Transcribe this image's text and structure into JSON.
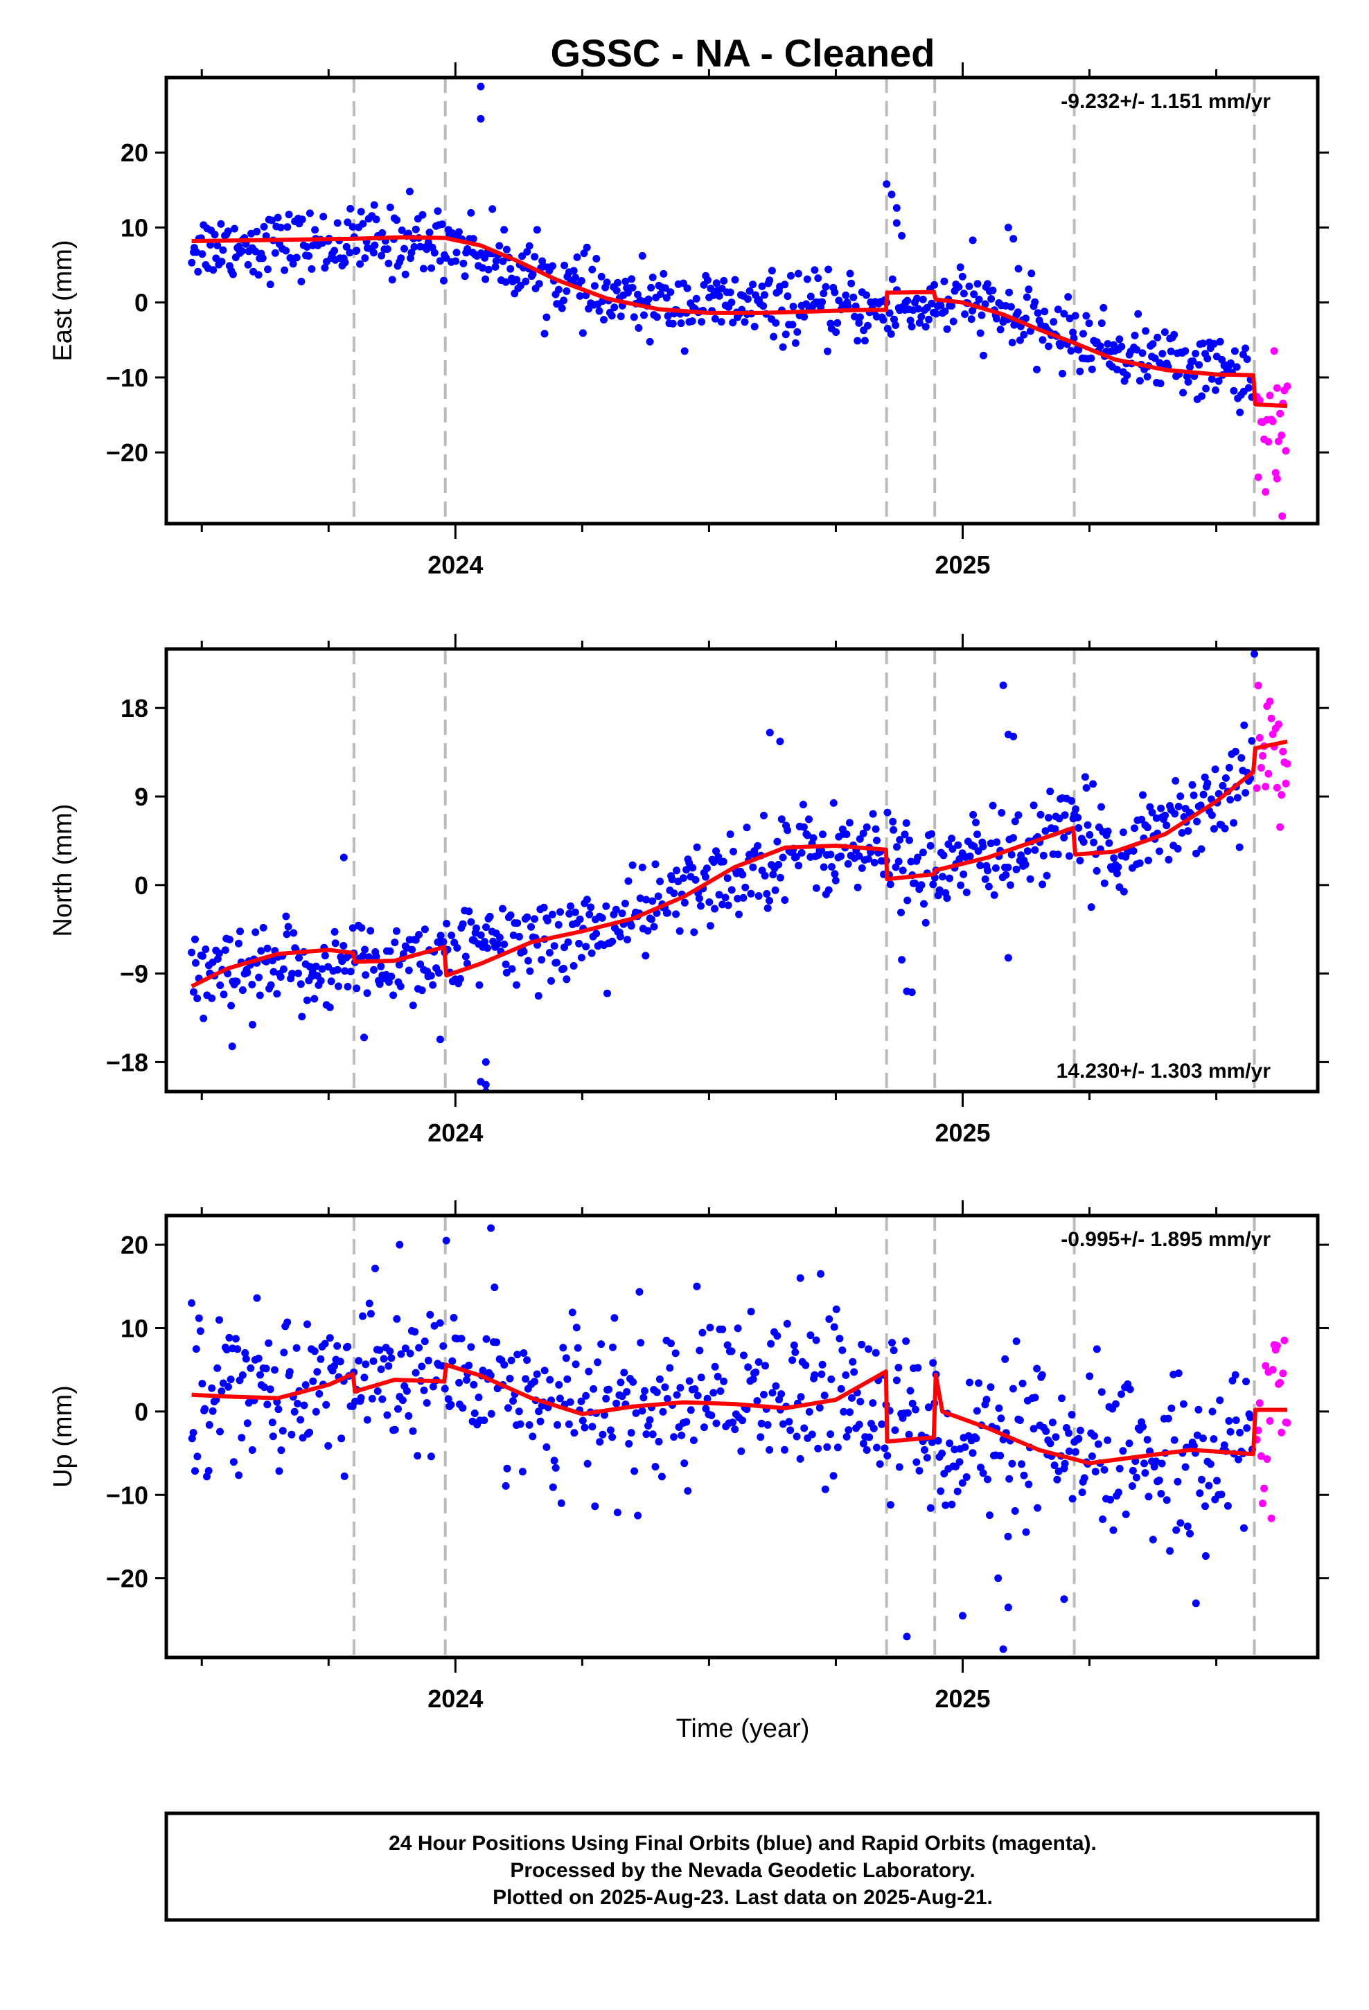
{
  "title": "GSSC  - NA - Cleaned",
  "x_axis_label": "Time (year)",
  "footer_lines": [
    "24 Hour Positions Using Final Orbits (blue) and Rapid Orbits (magenta).",
    "Processed by the Nevada Geodetic Laboratory.",
    "Plotted on 2025-Aug-23. Last data on 2025-Aug-21."
  ],
  "colors": {
    "final_orbits": "#0000ff",
    "rapid_orbits": "#ff00ff",
    "model": "#ff0000",
    "offset_lines": "#bbbbbb"
  },
  "chart_data": [
    {
      "type": "scatter",
      "component": "east",
      "ylabel": "East (mm)",
      "rate_text": "-9.232+/- 1.151 mm/yr",
      "xlim": [
        2023.43,
        2025.7
      ],
      "ylim": [
        -29.5,
        30
      ],
      "x_ticks": [
        2024,
        2025
      ],
      "y_ticks": [
        20,
        10,
        0,
        -10,
        -20
      ],
      "offset_epochs": [
        2023.8,
        2023.98,
        2024.85,
        2024.945,
        2025.22,
        2025.575
      ],
      "model": [
        [
          2023.48,
          8.2
        ],
        [
          2023.6,
          8.3
        ],
        [
          2023.7,
          8.4
        ],
        [
          2023.8,
          8.5
        ],
        [
          2023.9,
          8.7
        ],
        [
          2023.98,
          8.6
        ],
        [
          2024.05,
          7.6
        ],
        [
          2024.12,
          5.6
        ],
        [
          2024.2,
          3.0
        ],
        [
          2024.3,
          0.5
        ],
        [
          2024.4,
          -0.9
        ],
        [
          2024.5,
          -1.4
        ],
        [
          2024.6,
          -1.4
        ],
        [
          2024.7,
          -1.2
        ],
        [
          2024.8,
          -1.0
        ],
        [
          2024.849,
          -1.0
        ],
        [
          2024.851,
          1.3
        ],
        [
          2024.943,
          1.4
        ],
        [
          2024.947,
          0.4
        ],
        [
          2025.0,
          0.0
        ],
        [
          2025.08,
          -1.6
        ],
        [
          2025.15,
          -3.6
        ],
        [
          2025.22,
          -5.4
        ],
        [
          2025.3,
          -7.6
        ],
        [
          2025.4,
          -9.0
        ],
        [
          2025.5,
          -9.6
        ],
        [
          2025.573,
          -9.7
        ],
        [
          2025.577,
          -13.6
        ],
        [
          2025.64,
          -13.8
        ]
      ],
      "final_trend": [
        [
          2023.48,
          7.6
        ],
        [
          2024.0,
          8.0
        ],
        [
          2024.3,
          0.3
        ],
        [
          2024.85,
          -1.2
        ],
        [
          2025.0,
          0.1
        ],
        [
          2025.3,
          -6.5
        ],
        [
          2025.57,
          -9.6
        ]
      ],
      "final_scatter": 2.2,
      "final_count": 700,
      "rapid_trend": [
        [
          2025.58,
          -16.0
        ],
        [
          2025.64,
          -16.0
        ]
      ],
      "rapid_scatter": 4.0,
      "rapid_count": 22,
      "outliers": [
        [
          2024.05,
          28.8
        ],
        [
          2024.05,
          24.5
        ],
        [
          2024.85,
          15.8
        ],
        [
          2024.86,
          14.4
        ],
        [
          2024.87,
          12.6
        ],
        [
          2024.87,
          10.6
        ],
        [
          2024.88,
          8.9
        ],
        [
          2025.09,
          10.0
        ],
        [
          2025.1,
          8.5
        ],
        [
          2025.11,
          4.5
        ],
        [
          2025.02,
          8.3
        ],
        [
          2023.84,
          13.0
        ],
        [
          2023.91,
          14.8
        ],
        [
          2025.63,
          -28.5
        ],
        [
          2025.62,
          -23.5
        ]
      ]
    },
    {
      "type": "scatter",
      "component": "north",
      "ylabel": "North (mm)",
      "rate_text": "14.230+/- 1.303 mm/yr",
      "xlim": [
        2023.43,
        2025.7
      ],
      "ylim": [
        -21,
        24
      ],
      "x_ticks": [
        2024,
        2025
      ],
      "y_ticks": [
        18,
        9,
        0,
        -9,
        -18
      ],
      "offset_epochs": [
        2023.8,
        2023.98,
        2024.85,
        2024.945,
        2025.22,
        2025.575
      ],
      "model": [
        [
          2023.48,
          -10.3
        ],
        [
          2023.55,
          -8.5
        ],
        [
          2023.65,
          -7.0
        ],
        [
          2023.75,
          -6.6
        ],
        [
          2023.798,
          -6.9
        ],
        [
          2023.802,
          -7.8
        ],
        [
          2023.88,
          -7.7
        ],
        [
          2023.978,
          -6.3
        ],
        [
          2023.982,
          -9.2
        ],
        [
          2024.05,
          -8.0
        ],
        [
          2024.15,
          -5.8
        ],
        [
          2024.25,
          -4.7
        ],
        [
          2024.35,
          -3.4
        ],
        [
          2024.45,
          -1.2
        ],
        [
          2024.55,
          1.8
        ],
        [
          2024.65,
          3.8
        ],
        [
          2024.75,
          4.0
        ],
        [
          2024.849,
          3.6
        ],
        [
          2024.851,
          0.6
        ],
        [
          2024.943,
          1.1
        ],
        [
          2024.947,
          1.5
        ],
        [
          2025.05,
          2.8
        ],
        [
          2025.15,
          4.6
        ],
        [
          2025.218,
          5.8
        ],
        [
          2025.222,
          3.1
        ],
        [
          2025.3,
          3.4
        ],
        [
          2025.4,
          5.2
        ],
        [
          2025.5,
          8.5
        ],
        [
          2025.573,
          11.5
        ],
        [
          2025.577,
          13.9
        ],
        [
          2025.64,
          14.6
        ]
      ],
      "final_trend": [
        [
          2023.48,
          -9.8
        ],
        [
          2023.98,
          -7.0
        ],
        [
          2024.3,
          -4.5
        ],
        [
          2024.65,
          3.6
        ],
        [
          2024.85,
          3.2
        ],
        [
          2024.95,
          1.3
        ],
        [
          2025.22,
          5.5
        ],
        [
          2025.3,
          3.5
        ],
        [
          2025.57,
          11.0
        ]
      ],
      "final_scatter": 2.3,
      "final_count": 700,
      "rapid_trend": [
        [
          2025.58,
          14.0
        ],
        [
          2025.64,
          14.5
        ]
      ],
      "rapid_scatter": 3.0,
      "rapid_count": 22,
      "outliers": [
        [
          2023.56,
          -16.4
        ],
        [
          2023.78,
          2.8
        ],
        [
          2024.06,
          -18.0
        ],
        [
          2024.05,
          -20.0
        ],
        [
          2024.06,
          -20.3
        ],
        [
          2024.06,
          -21.0
        ],
        [
          2024.89,
          -10.8
        ],
        [
          2024.9,
          -10.9
        ],
        [
          2024.88,
          -7.6
        ],
        [
          2025.08,
          20.3
        ],
        [
          2025.09,
          15.3
        ],
        [
          2025.1,
          15.1
        ],
        [
          2025.09,
          -7.4
        ],
        [
          2023.6,
          -14.2
        ],
        [
          2023.82,
          -15.5
        ],
        [
          2023.97,
          -15.7
        ],
        [
          2025.575,
          23.5
        ],
        [
          2024.62,
          15.5
        ],
        [
          2024.64,
          14.6
        ]
      ]
    },
    {
      "type": "scatter",
      "component": "up",
      "ylabel": "Up (mm)",
      "rate_text": "-0.995+/- 1.895 mm/yr",
      "xlim": [
        2023.43,
        2025.7
      ],
      "ylim": [
        -29.5,
        23.5
      ],
      "x_ticks": [
        2024,
        2025
      ],
      "y_ticks": [
        20,
        10,
        0,
        -10,
        -20
      ],
      "offset_epochs": [
        2023.8,
        2023.98,
        2024.85,
        2024.945,
        2025.22,
        2025.575
      ],
      "model": [
        [
          2023.48,
          2.0
        ],
        [
          2023.55,
          1.8
        ],
        [
          2023.65,
          1.6
        ],
        [
          2023.75,
          3.2
        ],
        [
          2023.798,
          4.5
        ],
        [
          2023.802,
          2.4
        ],
        [
          2023.88,
          3.8
        ],
        [
          2023.978,
          3.6
        ],
        [
          2023.982,
          5.6
        ],
        [
          2024.05,
          4.3
        ],
        [
          2024.15,
          1.6
        ],
        [
          2024.25,
          -0.3
        ],
        [
          2024.35,
          0.6
        ],
        [
          2024.45,
          1.1
        ],
        [
          2024.55,
          0.9
        ],
        [
          2024.65,
          0.4
        ],
        [
          2024.75,
          1.4
        ],
        [
          2024.849,
          4.8
        ],
        [
          2024.851,
          -3.6
        ],
        [
          2024.943,
          -3.1
        ],
        [
          2024.947,
          4.4
        ],
        [
          2024.96,
          0.0
        ],
        [
          2025.05,
          -2.0
        ],
        [
          2025.15,
          -4.6
        ],
        [
          2025.25,
          -6.2
        ],
        [
          2025.35,
          -5.4
        ],
        [
          2025.45,
          -4.6
        ],
        [
          2025.573,
          -5.1
        ],
        [
          2025.577,
          0.2
        ],
        [
          2025.64,
          0.2
        ]
      ],
      "final_trend": [
        [
          2023.48,
          2.5
        ],
        [
          2023.98,
          4.5
        ],
        [
          2024.25,
          0.0
        ],
        [
          2024.85,
          2.0
        ],
        [
          2024.94,
          -3.0
        ],
        [
          2025.25,
          -6.0
        ],
        [
          2025.57,
          -4.5
        ]
      ],
      "final_scatter": 4.8,
      "final_count": 700,
      "rapid_trend": [
        [
          2025.58,
          2.0
        ],
        [
          2025.64,
          2.5
        ]
      ],
      "rapid_scatter": 8.0,
      "rapid_count": 22,
      "outliers": [
        [
          2023.89,
          20.0
        ],
        [
          2024.07,
          22.0
        ],
        [
          2024.89,
          -27.0
        ],
        [
          2025.08,
          -28.5
        ],
        [
          2025.09,
          -23.5
        ],
        [
          2025.07,
          -20.0
        ],
        [
          2025.2,
          -22.5
        ],
        [
          2025.0,
          -24.5
        ],
        [
          2024.68,
          16.0
        ],
        [
          2024.72,
          16.5
        ],
        [
          2025.46,
          -23.0
        ],
        [
          2023.48,
          13.0
        ]
      ]
    }
  ]
}
